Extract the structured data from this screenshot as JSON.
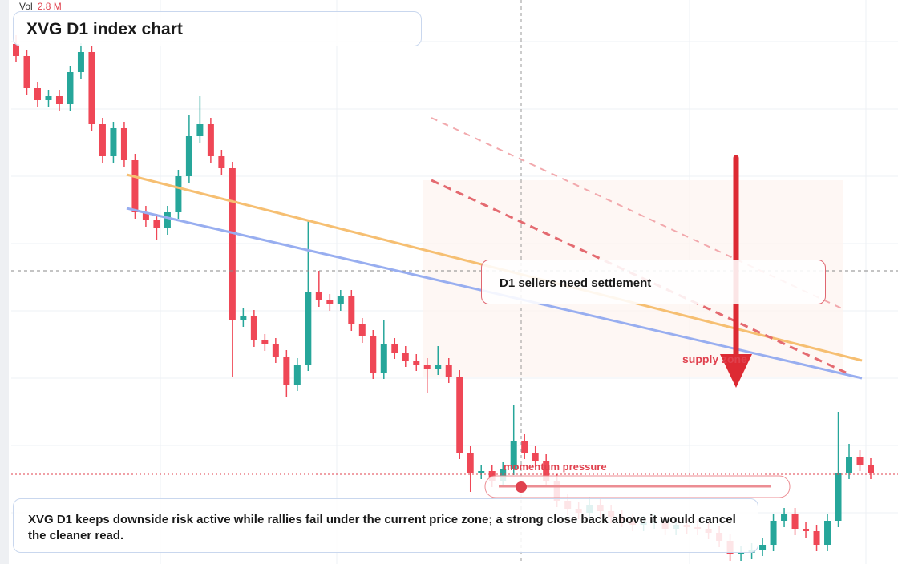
{
  "volume": {
    "label": "Vol",
    "value": "2.8 M"
  },
  "annotations": {
    "note": "D1 sellers need settlement",
    "zone": "supply zone",
    "momentum": "momentum pressure",
    "caption": "XVG D1 keeps downside risk active while rallies fail under the current price zone; a strong close back above it would cancel the cleaner read."
  },
  "chart_data": {
    "type": "candlestick",
    "title": "XVG D1 index chart",
    "ylim": [
      0,
      704
    ],
    "up_color": "#26a69a",
    "down_color": "#ef4756",
    "candles": [
      [
        649,
        660,
        626,
        634
      ],
      [
        634,
        642,
        586,
        594
      ],
      [
        594,
        602,
        571,
        579
      ],
      [
        579,
        592,
        571,
        584
      ],
      [
        584,
        592,
        566,
        574
      ],
      [
        574,
        622,
        566,
        614
      ],
      [
        614,
        650,
        606,
        639
      ],
      [
        639,
        647,
        541,
        549
      ],
      [
        549,
        557,
        501,
        509
      ],
      [
        509,
        552,
        501,
        544
      ],
      [
        544,
        552,
        496,
        504
      ],
      [
        504,
        512,
        431,
        439
      ],
      [
        439,
        447,
        421,
        429
      ],
      [
        429,
        437,
        404,
        419
      ],
      [
        419,
        447,
        411,
        439
      ],
      [
        439,
        492,
        431,
        484
      ],
      [
        484,
        560,
        476,
        534
      ],
      [
        534,
        584,
        526,
        549
      ],
      [
        549,
        557,
        501,
        509
      ],
      [
        509,
        517,
        486,
        494
      ],
      [
        494,
        502,
        234,
        304
      ],
      [
        304,
        319,
        296,
        309
      ],
      [
        309,
        317,
        271,
        279
      ],
      [
        279,
        287,
        266,
        274
      ],
      [
        274,
        282,
        251,
        259
      ],
      [
        259,
        267,
        208,
        224
      ],
      [
        224,
        257,
        216,
        249
      ],
      [
        249,
        430,
        241,
        339
      ],
      [
        339,
        366,
        321,
        329
      ],
      [
        329,
        337,
        316,
        324
      ],
      [
        324,
        342,
        316,
        334
      ],
      [
        334,
        342,
        291,
        299
      ],
      [
        299,
        307,
        276,
        284
      ],
      [
        284,
        292,
        231,
        239
      ],
      [
        239,
        304,
        231,
        274
      ],
      [
        274,
        282,
        256,
        264
      ],
      [
        264,
        272,
        246,
        254
      ],
      [
        254,
        262,
        241,
        249
      ],
      [
        249,
        257,
        214,
        244
      ],
      [
        244,
        272,
        236,
        249
      ],
      [
        249,
        257,
        226,
        234
      ],
      [
        234,
        242,
        131,
        139
      ],
      [
        139,
        147,
        90,
        114
      ],
      [
        114,
        124,
        106,
        116
      ],
      [
        116,
        124,
        96,
        104
      ],
      [
        104,
        127,
        96,
        119
      ],
      [
        119,
        198,
        111,
        154
      ],
      [
        154,
        162,
        131,
        139
      ],
      [
        139,
        147,
        121,
        129
      ],
      [
        129,
        137,
        96,
        104
      ],
      [
        104,
        112,
        71,
        79
      ],
      [
        79,
        87,
        61,
        69
      ],
      [
        69,
        77,
        56,
        64
      ],
      [
        64,
        84,
        56,
        74
      ],
      [
        74,
        82,
        58,
        66
      ],
      [
        66,
        74,
        51,
        59
      ],
      [
        59,
        67,
        46,
        54
      ],
      [
        54,
        62,
        41,
        49
      ],
      [
        49,
        60,
        41,
        52
      ],
      [
        52,
        62,
        44,
        54
      ],
      [
        54,
        62,
        36,
        44
      ],
      [
        44,
        57,
        36,
        49
      ],
      [
        49,
        57,
        38,
        46
      ],
      [
        46,
        54,
        36,
        44
      ],
      [
        44,
        52,
        31,
        39
      ],
      [
        39,
        47,
        21,
        29
      ],
      [
        29,
        37,
        4,
        12
      ],
      [
        12,
        22,
        4,
        14
      ],
      [
        14,
        26,
        6,
        18
      ],
      [
        18,
        32,
        10,
        24
      ],
      [
        24,
        62,
        16,
        54
      ],
      [
        54,
        70,
        46,
        62
      ],
      [
        62,
        70,
        36,
        44
      ],
      [
        44,
        52,
        33,
        41
      ],
      [
        41,
        49,
        16,
        24
      ],
      [
        24,
        62,
        16,
        54
      ],
      [
        54,
        190,
        46,
        114
      ],
      [
        114,
        150,
        106,
        134
      ],
      [
        134,
        142,
        116,
        124
      ],
      [
        124,
        132,
        106,
        114
      ]
    ]
  }
}
